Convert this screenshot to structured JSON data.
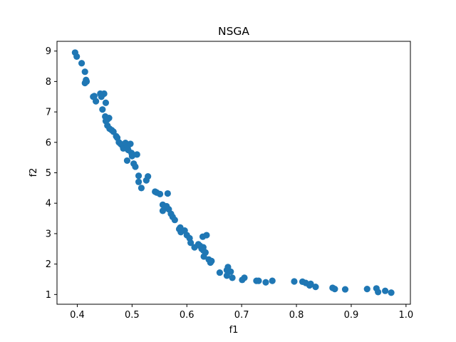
{
  "chart_data": {
    "type": "scatter",
    "title": "NSGA",
    "xlabel": "f1",
    "ylabel": "f2",
    "xlim": [
      0.363,
      1.008
    ],
    "ylim": [
      0.68,
      9.32
    ],
    "xticks": [
      0.4,
      0.5,
      0.6,
      0.7,
      0.8,
      0.9,
      1.0
    ],
    "xtick_labels": [
      "0.4",
      "0.5",
      "0.6",
      "0.7",
      "0.8",
      "0.9",
      "1.0"
    ],
    "yticks": [
      1,
      2,
      3,
      4,
      5,
      6,
      7,
      8,
      9
    ],
    "ytick_labels": [
      "1",
      "2",
      "3",
      "4",
      "5",
      "6",
      "7",
      "8",
      "9"
    ],
    "grid": false,
    "marker_color": "#1f77b4",
    "x": [
      0.396,
      0.399,
      0.408,
      0.414,
      0.416,
      0.414,
      0.417,
      0.429,
      0.434,
      0.431,
      0.442,
      0.449,
      0.444,
      0.452,
      0.446,
      0.451,
      0.458,
      0.455,
      0.452,
      0.455,
      0.459,
      0.463,
      0.466,
      0.471,
      0.473,
      0.476,
      0.479,
      0.482,
      0.484,
      0.488,
      0.492,
      0.493,
      0.499,
      0.497,
      0.509,
      0.5,
      0.503,
      0.506,
      0.491,
      0.512,
      0.512,
      0.526,
      0.529,
      0.517,
      0.542,
      0.545,
      0.551,
      0.565,
      0.556,
      0.563,
      0.556,
      0.567,
      0.571,
      0.574,
      0.578,
      0.588,
      0.586,
      0.589,
      0.596,
      0.6,
      0.605,
      0.607,
      0.621,
      0.624,
      0.614,
      0.627,
      0.63,
      0.63,
      0.629,
      0.636,
      0.634,
      0.631,
      0.64,
      0.645,
      0.643,
      0.66,
      0.673,
      0.675,
      0.68,
      0.673,
      0.683,
      0.701,
      0.705,
      0.727,
      0.731,
      0.744,
      0.756,
      0.796,
      0.811,
      0.817,
      0.824,
      0.826,
      0.835,
      0.866,
      0.87,
      0.889,
      0.929,
      0.946,
      0.949,
      0.962,
      0.973
    ],
    "y": [
      8.95,
      8.82,
      8.6,
      8.32,
      8.05,
      7.95,
      8.0,
      7.5,
      7.35,
      7.52,
      7.6,
      7.6,
      7.5,
      7.3,
      7.08,
      6.85,
      6.8,
      6.75,
      6.7,
      6.55,
      6.45,
      6.4,
      6.35,
      6.2,
      6.15,
      6.0,
      5.95,
      5.9,
      5.8,
      5.98,
      5.85,
      5.75,
      5.65,
      5.95,
      5.6,
      5.55,
      5.3,
      5.2,
      5.4,
      4.9,
      4.7,
      4.75,
      4.88,
      4.5,
      4.38,
      4.35,
      4.3,
      4.32,
      3.95,
      3.9,
      3.75,
      3.8,
      3.65,
      3.55,
      3.45,
      3.2,
      3.15,
      3.05,
      3.1,
      2.95,
      2.85,
      2.7,
      2.65,
      2.6,
      2.55,
      2.5,
      2.55,
      2.45,
      2.9,
      2.95,
      2.38,
      2.25,
      2.15,
      2.1,
      2.05,
      1.72,
      1.8,
      1.9,
      1.75,
      1.62,
      1.55,
      1.48,
      1.55,
      1.45,
      1.45,
      1.4,
      1.45,
      1.43,
      1.42,
      1.38,
      1.3,
      1.35,
      1.25,
      1.22,
      1.18,
      1.17,
      1.18,
      1.2,
      1.08,
      1.12,
      1.06
    ]
  }
}
